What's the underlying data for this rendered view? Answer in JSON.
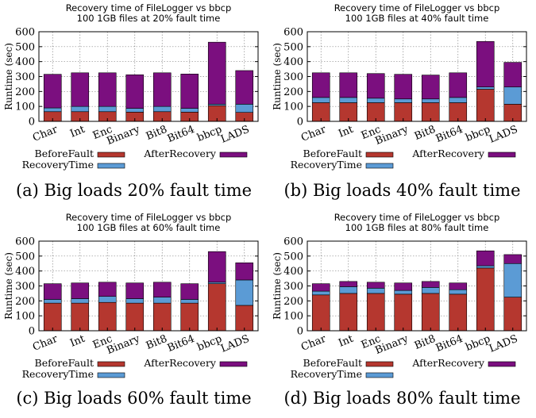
{
  "chart_data": [
    {
      "type": "bar",
      "stacked": true,
      "title": "Recovery time of FileLogger vs bbcp",
      "subtitle": "100 1GB files at 20% fault time",
      "ylabel": "Runtime (sec)",
      "xlabel": "",
      "ylim": [
        0,
        600
      ],
      "yticks": [
        "0",
        "100",
        "200",
        "300",
        "400",
        "500",
        "600"
      ],
      "grid": true,
      "categories": [
        "Char",
        "Int",
        "Enc",
        "Binary",
        "Bit8",
        "Bit64",
        "bbcp",
        "LADS"
      ],
      "series": [
        {
          "name": "BeforeFault",
          "color": "#b5372f",
          "values": [
            65,
            65,
            65,
            62,
            65,
            62,
            105,
            60
          ]
        },
        {
          "name": "RecoveryTime",
          "color": "#5b9bd5",
          "values": [
            25,
            35,
            35,
            25,
            35,
            25,
            10,
            55
          ]
        },
        {
          "name": "AfterRecovery",
          "color": "#7b0f7f",
          "values": [
            225,
            225,
            225,
            225,
            225,
            230,
            415,
            225
          ]
        }
      ],
      "legend": "bottom",
      "caption": "(a) Big loads 20% fault time"
    },
    {
      "type": "bar",
      "stacked": true,
      "title": "Recovery time of FileLogger vs bbcp",
      "subtitle": "100 1GB files at 40% fault time",
      "ylabel": "Runtime (sec)",
      "xlabel": "",
      "ylim": [
        0,
        600
      ],
      "yticks": [
        "0",
        "100",
        "200",
        "300",
        "400",
        "500",
        "600"
      ],
      "grid": true,
      "categories": [
        "Char",
        "Int",
        "Enc",
        "Binary",
        "Bit8",
        "Bit64",
        "bbcp",
        "LADS"
      ],
      "series": [
        {
          "name": "BeforeFault",
          "color": "#b5372f",
          "values": [
            125,
            125,
            125,
            125,
            125,
            125,
            215,
            115
          ]
        },
        {
          "name": "RecoveryTime",
          "color": "#5b9bd5",
          "values": [
            35,
            35,
            30,
            25,
            25,
            35,
            15,
            115
          ]
        },
        {
          "name": "AfterRecovery",
          "color": "#7b0f7f",
          "values": [
            165,
            165,
            165,
            165,
            160,
            165,
            305,
            165
          ]
        }
      ],
      "legend": "bottom",
      "caption": "(b) Big loads 40% fault time"
    },
    {
      "type": "bar",
      "stacked": true,
      "title": "Recovery time of FileLogger vs bbcp",
      "subtitle": "100 1GB files at 60% fault time",
      "ylabel": "Runtime (sec)",
      "xlabel": "",
      "ylim": [
        0,
        600
      ],
      "yticks": [
        "0",
        "100",
        "200",
        "300",
        "400",
        "500",
        "600"
      ],
      "grid": true,
      "categories": [
        "Char",
        "Int",
        "Enc",
        "Binary",
        "Bit8",
        "Bit64",
        "bbcp",
        "LADS"
      ],
      "series": [
        {
          "name": "BeforeFault",
          "color": "#b5372f",
          "values": [
            185,
            185,
            190,
            185,
            185,
            185,
            315,
            170
          ]
        },
        {
          "name": "RecoveryTime",
          "color": "#5b9bd5",
          "values": [
            25,
            30,
            40,
            30,
            40,
            25,
            10,
            170
          ]
        },
        {
          "name": "AfterRecovery",
          "color": "#7b0f7f",
          "values": [
            105,
            105,
            95,
            105,
            100,
            105,
            205,
            115
          ]
        }
      ],
      "legend": "bottom",
      "caption": "(c) Big loads 60% fault time"
    },
    {
      "type": "bar",
      "stacked": true,
      "title": "Recovery time of FileLogger vs bbcp",
      "subtitle": "100 1GB files at 80% fault time",
      "ylabel": "Runtime (sec)",
      "xlabel": "",
      "ylim": [
        0,
        600
      ],
      "yticks": [
        "0",
        "100",
        "200",
        "300",
        "400",
        "500",
        "600"
      ],
      "grid": true,
      "categories": [
        "Char",
        "Int",
        "Enc",
        "Binary",
        "Bit8",
        "Bit64",
        "bbcp",
        "LADS"
      ],
      "series": [
        {
          "name": "BeforeFault",
          "color": "#b5372f",
          "values": [
            240,
            250,
            250,
            245,
            250,
            245,
            420,
            225
          ]
        },
        {
          "name": "RecoveryTime",
          "color": "#5b9bd5",
          "values": [
            25,
            45,
            35,
            25,
            40,
            30,
            15,
            225
          ]
        },
        {
          "name": "AfterRecovery",
          "color": "#7b0f7f",
          "values": [
            50,
            35,
            40,
            50,
            40,
            45,
            100,
            60
          ]
        }
      ],
      "legend": "bottom",
      "caption": "(d) Big loads 80% fault time"
    }
  ]
}
